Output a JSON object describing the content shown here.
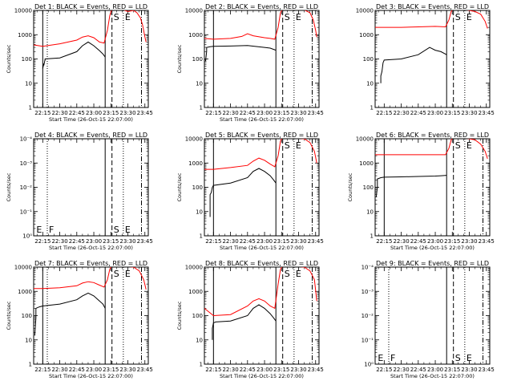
{
  "chart_data": [
    {
      "type": "line",
      "title": "Det 1: BLACK = Events, RED = LLD",
      "xlabel": "Start Time (26-Oct-15 22:07:00)",
      "ylabel": "Counts/sec",
      "yscale": "log",
      "ylim": [
        1,
        10000
      ],
      "ytick_labels": [
        "1",
        "10",
        "100",
        "1000",
        "10000"
      ],
      "xlim": [
        "22:07",
        "23:48"
      ],
      "xtick_labels": [
        "22:15",
        "22:30",
        "22:45",
        "23:00",
        "23:15",
        "23:30",
        "23:45"
      ],
      "markers": [
        {
          "label": "",
          "x": "22:15",
          "style": "solid"
        },
        {
          "label": "",
          "x": "22:19",
          "style": "dotted"
        },
        {
          "label": "",
          "x": "23:10",
          "style": "solid"
        },
        {
          "label": "S",
          "x": "23:16",
          "style": "dashed"
        },
        {
          "label": "E",
          "x": "23:26",
          "style": "dotted"
        },
        {
          "label": "",
          "x": "23:42",
          "style": "dashdot"
        }
      ],
      "series": [
        {
          "color": "#000000",
          "x": [
            "22:15",
            "22:16",
            "22:16",
            "22:17",
            "22:17",
            "22:17",
            "22:30",
            "22:45",
            "22:50",
            "22:55",
            "23:00",
            "23:05",
            "23:08",
            "23:10"
          ],
          "y": [
            40,
            65,
            55,
            95,
            85,
            100,
            110,
            200,
            350,
            500,
            350,
            220,
            160,
            120
          ]
        },
        {
          "color": "#ff0000",
          "x": [
            "22:07",
            "22:15",
            "22:30",
            "22:45",
            "22:50",
            "22:55",
            "23:00",
            "23:05",
            "23:09",
            "23:12",
            "23:14",
            "23:16",
            "23:20",
            "23:25",
            "23:30",
            "23:35",
            "23:38",
            "23:41",
            "23:43",
            "23:45",
            "23:46"
          ],
          "y": [
            380,
            330,
            420,
            600,
            800,
            900,
            750,
            500,
            450,
            1500,
            6000,
            12000,
            13000,
            11000,
            9000,
            10000,
            8000,
            5000,
            2500,
            800,
            500
          ]
        }
      ]
    },
    {
      "type": "line",
      "title": "Det 2: BLACK = Events, RED = LLD",
      "xlabel": "Start Time (26-Oct-15 22:07:00)",
      "ylabel": "Counts/sec",
      "yscale": "log",
      "ylim": [
        1,
        10000
      ],
      "ytick_labels": [
        "1",
        "10",
        "100",
        "1000",
        "10000"
      ],
      "xlim": [
        "22:07",
        "23:48"
      ],
      "xtick_labels": [
        "22:15",
        "22:30",
        "22:45",
        "23:00",
        "23:15",
        "23:30",
        "23:45"
      ],
      "markers": [
        {
          "label": "",
          "x": "22:15",
          "style": "solid"
        },
        {
          "label": "",
          "x": "23:10",
          "style": "solid"
        },
        {
          "label": "S",
          "x": "23:16",
          "style": "dashed"
        },
        {
          "label": "E",
          "x": "23:26",
          "style": "dotted"
        },
        {
          "label": "",
          "x": "23:42",
          "style": "dashdot"
        }
      ],
      "series": [
        {
          "color": "#000000",
          "x": [
            "22:08",
            "22:09",
            "22:09",
            "22:12",
            "22:15",
            "22:30",
            "22:45",
            "23:00",
            "23:05",
            "23:10"
          ],
          "y": [
            80,
            200,
            300,
            320,
            330,
            340,
            360,
            300,
            280,
            230
          ]
        },
        {
          "color": "#ff0000",
          "x": [
            "22:07",
            "22:15",
            "22:30",
            "22:40",
            "22:45",
            "22:50",
            "23:00",
            "23:05",
            "23:09",
            "23:12",
            "23:14",
            "23:16",
            "23:25",
            "23:35",
            "23:40",
            "23:43",
            "23:45",
            "23:46"
          ],
          "y": [
            700,
            650,
            700,
            850,
            1100,
            900,
            750,
            700,
            650,
            2000,
            8000,
            12000,
            11000,
            10500,
            8000,
            4000,
            1500,
            800
          ]
        }
      ]
    },
    {
      "type": "line",
      "title": "Det 3: BLACK = Events, RED = LLD",
      "xlabel": "",
      "ylabel": "",
      "yscale": "log",
      "ylim": [
        1,
        10000
      ],
      "ytick_labels": [
        "1",
        "10",
        "100",
        "1000",
        "10000"
      ],
      "xlim": [
        "22:07",
        "23:48"
      ],
      "xtick_labels": [
        "22:15",
        "22:30",
        "22:45",
        "23:00",
        "23:15",
        "23:30",
        "23:45"
      ],
      "markers": [
        {
          "label": "",
          "x": "23:10",
          "style": "solid"
        },
        {
          "label": "S",
          "x": "23:16",
          "style": "dashed"
        },
        {
          "label": "E",
          "x": "23:26",
          "style": "dotted"
        }
      ],
      "series": [
        {
          "color": "#000000",
          "x": [
            "22:12",
            "22:12",
            "22:13",
            "22:14",
            "22:15",
            "22:30",
            "22:45",
            "22:55",
            "23:00",
            "23:05",
            "23:10"
          ],
          "y": [
            10,
            20,
            30,
            70,
            90,
            100,
            150,
            300,
            230,
            200,
            150
          ]
        },
        {
          "color": "#ff0000",
          "x": [
            "22:07",
            "22:30",
            "22:45",
            "23:00",
            "23:09",
            "23:12",
            "23:14",
            "23:16",
            "23:25",
            "23:35",
            "23:40",
            "23:44",
            "23:46"
          ],
          "y": [
            2000,
            2000,
            2100,
            2200,
            2100,
            4000,
            9000,
            12000,
            11000,
            9000,
            7000,
            3500,
            1800
          ]
        }
      ]
    },
    {
      "type": "line",
      "title": "Det 4: BLACK = Events, RED = LLD",
      "xlabel": "Start Time (26-Oct-15 22:07:00)",
      "ylabel": "Counts/sec",
      "yscale": "log",
      "ylim": [
        1,
        10000
      ],
      "ytick_labels": [
        "10⁰",
        "10⁻¹",
        "10⁻²",
        "10⁻³",
        "10⁻⁴"
      ],
      "xlim": [
        "22:07",
        "23:48"
      ],
      "xtick_labels": [
        "22:15",
        "22:30",
        "22:45",
        "23:00",
        "23:15",
        "23:30",
        "23:45"
      ],
      "markers": [
        {
          "label": "E",
          "x": "22:08",
          "style": "none"
        },
        {
          "label": "F",
          "x": "22:19",
          "style": "dotted"
        },
        {
          "label": "",
          "x": "23:10",
          "style": "solid"
        },
        {
          "label": "S",
          "x": "23:16",
          "style": "dashed"
        },
        {
          "label": "E",
          "x": "23:26",
          "style": "dotted"
        },
        {
          "label": "",
          "x": "23:42",
          "style": "dashdot"
        }
      ],
      "series": []
    },
    {
      "type": "line",
      "title": "Det 5: BLACK = Events, RED = LLD",
      "xlabel": "Start Time (26-Oct-15 22:07:00)",
      "ylabel": "Counts/sec",
      "yscale": "log",
      "ylim": [
        1,
        10000
      ],
      "ytick_labels": [
        "1",
        "10",
        "100",
        "1000",
        "10000"
      ],
      "xlim": [
        "22:07",
        "23:48"
      ],
      "xtick_labels": [
        "22:15",
        "22:30",
        "22:45",
        "23:00",
        "23:15",
        "23:30",
        "23:45"
      ],
      "markers": [
        {
          "label": "",
          "x": "22:15",
          "style": "solid"
        },
        {
          "label": "",
          "x": "23:10",
          "style": "solid"
        },
        {
          "label": "S",
          "x": "23:16",
          "style": "dashed"
        },
        {
          "label": "E",
          "x": "23:26",
          "style": "dotted"
        },
        {
          "label": "",
          "x": "23:42",
          "style": "dashdot"
        }
      ],
      "series": [
        {
          "color": "#000000",
          "x": [
            "22:12",
            "22:12",
            "22:13",
            "22:14",
            "22:15",
            "22:30",
            "22:45",
            "22:50",
            "22:55",
            "23:00",
            "23:05",
            "23:08",
            "23:10"
          ],
          "y": [
            6,
            50,
            60,
            100,
            120,
            150,
            250,
            450,
            600,
            450,
            300,
            200,
            150
          ]
        },
        {
          "color": "#ff0000",
          "x": [
            "22:07",
            "22:15",
            "22:30",
            "22:45",
            "22:50",
            "22:55",
            "23:00",
            "23:05",
            "23:09",
            "23:12",
            "23:14",
            "23:16",
            "23:25",
            "23:35",
            "23:40",
            "23:44",
            "23:46"
          ],
          "y": [
            550,
            550,
            650,
            800,
            1200,
            1600,
            1300,
            900,
            700,
            2000,
            8000,
            12000,
            11000,
            10000,
            7000,
            3000,
            1000
          ]
        }
      ]
    },
    {
      "type": "line",
      "title": "Det 6: BLACK = Events, RED = LLD",
      "xlabel": "Start Time (26-Oct-15 22:07:00)",
      "ylabel": "Counts/sec",
      "yscale": "log",
      "ylim": [
        1,
        10000
      ],
      "ytick_labels": [
        "1",
        "10",
        "100",
        "1000",
        "10000"
      ],
      "xlim": [
        "22:07",
        "23:48"
      ],
      "xtick_labels": [
        "22:15",
        "22:30",
        "22:45",
        "23:00",
        "23:15",
        "23:30",
        "23:45"
      ],
      "markers": [
        {
          "label": "",
          "x": "22:15",
          "style": "solid"
        },
        {
          "label": "",
          "x": "23:10",
          "style": "solid"
        },
        {
          "label": "S",
          "x": "23:16",
          "style": "dashed"
        },
        {
          "label": "E",
          "x": "23:26",
          "style": "dotted"
        },
        {
          "label": "",
          "x": "23:42",
          "style": "dashdot"
        }
      ],
      "series": [
        {
          "color": "#000000",
          "x": [
            "22:08",
            "22:09",
            "22:09",
            "22:12",
            "22:15",
            "22:30",
            "22:45",
            "23:00",
            "23:05",
            "23:10"
          ],
          "y": [
            40,
            100,
            220,
            250,
            260,
            270,
            280,
            290,
            300,
            310
          ]
        },
        {
          "color": "#ff0000",
          "x": [
            "22:07",
            "22:30",
            "22:45",
            "23:00",
            "23:09",
            "23:12",
            "23:14",
            "23:16",
            "23:25",
            "23:35",
            "23:40",
            "23:44",
            "23:46"
          ],
          "y": [
            2200,
            2200,
            2200,
            2200,
            2200,
            4000,
            9000,
            12000,
            11000,
            9000,
            6000,
            3000,
            1500
          ]
        }
      ]
    },
    {
      "type": "line",
      "title": "Det 7: BLACK = Events, RED = LLD",
      "xlabel": "Start Time (26-Oct-15 22:07:00)",
      "ylabel": "Counts/sec",
      "yscale": "log",
      "ylim": [
        1,
        10000
      ],
      "ytick_labels": [
        "1",
        "10",
        "100",
        "1000",
        "10000"
      ],
      "xlim": [
        "22:07",
        "23:48"
      ],
      "xtick_labels": [
        "22:15",
        "22:30",
        "22:45",
        "23:00",
        "23:15",
        "23:30",
        "23:45"
      ],
      "markers": [
        {
          "label": "",
          "x": "22:15",
          "style": "solid"
        },
        {
          "label": "",
          "x": "22:19",
          "style": "dotted"
        },
        {
          "label": "",
          "x": "23:10",
          "style": "solid"
        },
        {
          "label": "S",
          "x": "23:16",
          "style": "dashed"
        },
        {
          "label": "E",
          "x": "23:26",
          "style": "dotted"
        },
        {
          "label": "",
          "x": "23:42",
          "style": "dashdot"
        }
      ],
      "series": [
        {
          "color": "#000000",
          "x": [
            "22:08",
            "22:09",
            "22:09",
            "22:12",
            "22:15",
            "22:30",
            "22:45",
            "22:50",
            "22:55",
            "23:00",
            "23:05",
            "23:08",
            "23:10"
          ],
          "y": [
            15,
            80,
            200,
            230,
            250,
            300,
            450,
            650,
            850,
            650,
            400,
            300,
            200
          ]
        },
        {
          "color": "#ff0000",
          "x": [
            "22:07",
            "22:15",
            "22:30",
            "22:45",
            "22:50",
            "22:55",
            "23:00",
            "23:05",
            "23:09",
            "23:12",
            "23:14",
            "23:16",
            "23:25",
            "23:35",
            "23:40",
            "23:44",
            "23:46"
          ],
          "y": [
            1300,
            1300,
            1400,
            1700,
            2200,
            2500,
            2300,
            1800,
            1500,
            3000,
            8000,
            12000,
            11000,
            10000,
            7000,
            3000,
            1200
          ]
        }
      ]
    },
    {
      "type": "line",
      "title": "Det 8: BLACK = Events, RED = LLD",
      "xlabel": "Start Time (26-Oct-15 22:07:00)",
      "ylabel": "Counts/sec",
      "yscale": "log",
      "ylim": [
        1,
        10000
      ],
      "ytick_labels": [
        "1",
        "10",
        "100",
        "1000",
        "10000"
      ],
      "xlim": [
        "22:07",
        "23:48"
      ],
      "xtick_labels": [
        "22:15",
        "22:30",
        "22:45",
        "23:00",
        "23:15",
        "23:30",
        "23:45"
      ],
      "markers": [
        {
          "label": "",
          "x": "22:15",
          "style": "solid"
        },
        {
          "label": "",
          "x": "23:10",
          "style": "solid"
        },
        {
          "label": "S",
          "x": "23:16",
          "style": "dashed"
        },
        {
          "label": "E",
          "x": "23:26",
          "style": "dotted"
        },
        {
          "label": "",
          "x": "23:42",
          "style": "dashdot"
        }
      ],
      "series": [
        {
          "color": "#000000",
          "x": [
            "22:14",
            "22:14",
            "22:15",
            "22:17",
            "22:30",
            "22:45",
            "22:50",
            "22:55",
            "23:00",
            "23:05",
            "23:08",
            "23:10"
          ],
          "y": [
            10,
            30,
            50,
            55,
            60,
            100,
            200,
            280,
            200,
            120,
            80,
            60
          ]
        },
        {
          "color": "#ff0000",
          "x": [
            "22:07",
            "22:15",
            "22:30",
            "22:45",
            "22:50",
            "22:55",
            "23:00",
            "23:05",
            "23:09",
            "23:12",
            "23:14",
            "23:16",
            "23:25",
            "23:35",
            "23:40",
            "23:44",
            "23:46"
          ],
          "y": [
            200,
            100,
            110,
            250,
            400,
            500,
            400,
            250,
            200,
            2000,
            8000,
            12000,
            11000,
            10000,
            7000,
            3000,
            400
          ]
        }
      ]
    },
    {
      "type": "line",
      "title": "Det 9: BLACK = Events, RED = LLD",
      "xlabel": "Start Time (26-Oct-15 22:07:00)",
      "ylabel": "",
      "yscale": "log",
      "ylim": [
        1,
        10000
      ],
      "ytick_labels": [
        "10⁰",
        "10⁻¹",
        "10⁻²",
        "10⁻³",
        "10⁻⁴"
      ],
      "xlim": [
        "22:07",
        "23:48"
      ],
      "xtick_labels": [
        "22:15",
        "22:30",
        "22:45",
        "23:00",
        "23:15",
        "23:30",
        "23:45"
      ],
      "markers": [
        {
          "label": "E",
          "x": "22:08",
          "style": "none"
        },
        {
          "label": "F",
          "x": "22:19",
          "style": "dotted"
        },
        {
          "label": "",
          "x": "23:10",
          "style": "solid"
        },
        {
          "label": "S",
          "x": "23:16",
          "style": "dashed"
        },
        {
          "label": "E",
          "x": "23:26",
          "style": "dotted"
        },
        {
          "label": "",
          "x": "23:42",
          "style": "dashdot"
        }
      ],
      "series": []
    }
  ]
}
